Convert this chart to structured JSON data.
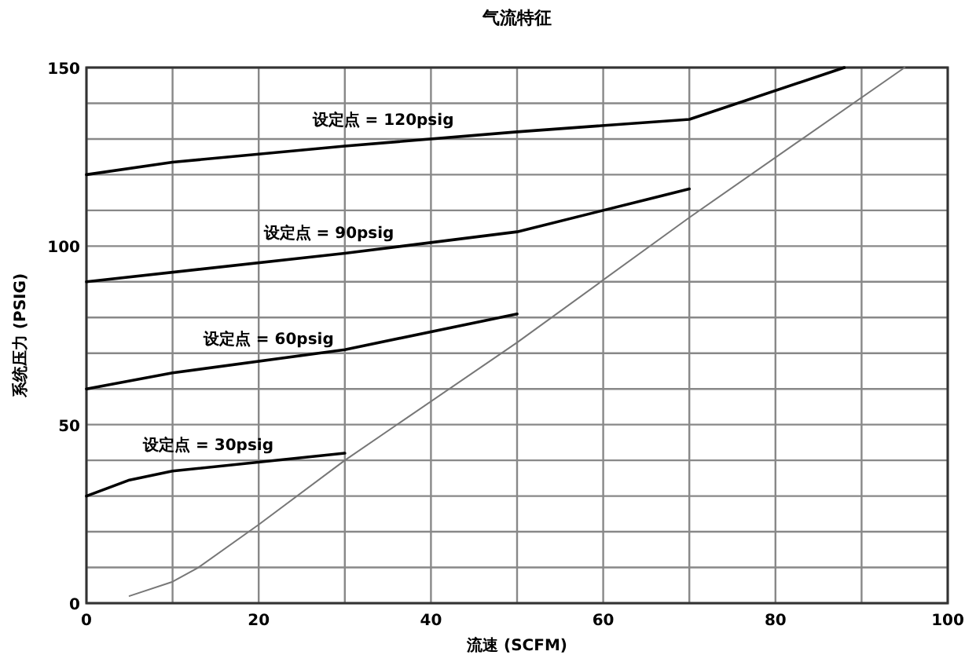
{
  "chart_data": {
    "type": "line",
    "title": "气流特征",
    "xlabel": "流速 (SCFM)",
    "ylabel": "系统压力 (PSIG)",
    "xlim": [
      0,
      100
    ],
    "ylim": [
      0,
      150
    ],
    "xticks": [
      0,
      {
        "value": 10,
        "label": null
      },
      20,
      {
        "value": 30,
        "label": null
      },
      40,
      {
        "value": 50,
        "label": null
      },
      60,
      {
        "value": 70,
        "label": null
      },
      80,
      {
        "value": 90,
        "label": null
      },
      100
    ],
    "yticks": [
      0,
      {
        "value": 10,
        "label": null
      },
      {
        "value": 20,
        "label": null
      },
      {
        "value": 30,
        "label": null
      },
      {
        "value": 40,
        "label": null
      },
      50,
      {
        "value": 60,
        "label": null
      },
      {
        "value": 70,
        "label": null
      },
      {
        "value": 80,
        "label": null
      },
      {
        "value": 90,
        "label": null
      },
      100,
      {
        "value": 110,
        "label": null
      },
      {
        "value": 120,
        "label": null
      },
      {
        "value": 130,
        "label": null
      },
      {
        "value": 140,
        "label": null
      },
      150
    ],
    "grid": true,
    "marker": "none",
    "line_style": "solid",
    "series": [
      {
        "name": "设定点 = 120psig",
        "color": "#000000",
        "x": [
          0,
          10,
          30,
          50,
          70,
          88
        ],
        "values": [
          120,
          123.5,
          128,
          132,
          135.5,
          150
        ]
      },
      {
        "name": "设定点 = 90psig",
        "color": "#000000",
        "x": [
          0,
          30,
          50,
          70
        ],
        "values": [
          90,
          98,
          104,
          116
        ]
      },
      {
        "name": "设定点 = 60psig",
        "color": "#000000",
        "x": [
          0,
          10,
          30,
          50
        ],
        "values": [
          60,
          64.5,
          71,
          81
        ]
      },
      {
        "name": "设定点 = 30psig",
        "color": "#000000",
        "x": [
          0,
          5,
          10,
          30
        ],
        "values": [
          30,
          34.5,
          37,
          42
        ]
      },
      {
        "color": "#777777",
        "x": [
          5,
          10,
          13,
          20,
          30,
          50,
          70,
          95
        ],
        "values": [
          2,
          6,
          10,
          22,
          40,
          73,
          108,
          150
        ]
      }
    ]
  }
}
